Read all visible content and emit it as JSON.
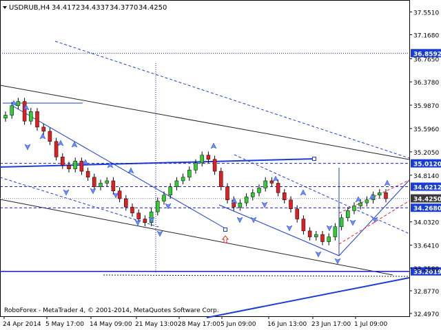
{
  "chart_data": {
    "type": "candlestick",
    "title": "USDRUB,H4",
    "ohlc": {
      "open": "34.4172",
      "high": "34.4337",
      "low": "34.3770",
      "close": "34.4250"
    },
    "copyright": "RoboForex - MetaTrader 4, © 2001-2014, MetaQuotes Software Corp.",
    "ylim": [
      32.45,
      37.75
    ],
    "y_ticks": [
      37.551,
      37.168,
      36.765,
      36.378,
      35.987,
      35.596,
      35.205,
      34.814,
      34.032,
      33.641,
      33.258,
      32.877,
      32.497
    ],
    "y_tick_labels": [
      "37.5510",
      "37.1680",
      "36.7650",
      "36.3780",
      "35.9870",
      "35.5960",
      "35.2050",
      "34.8140",
      "34.0320",
      "33.6410",
      "33.2580",
      "32.8770",
      "32.4970"
    ],
    "x_tick_labels": [
      "24 Apr 2014",
      "5 May 17:00",
      "14 May 09:00",
      "21 May 13:00",
      "28 May 17:00",
      "5 Jun 09:00",
      "16 Jun 13:00",
      "23 Jun 17:00",
      "1 Jul 09:00"
    ],
    "price_levels": [
      {
        "value": 36.8592,
        "label": "36.8592",
        "style": "dotted"
      },
      {
        "value": 35.012,
        "label": "35.0120",
        "style": "dashed"
      },
      {
        "value": 34.6212,
        "label": "34.6212",
        "style": "dashed"
      },
      {
        "value": 34.425,
        "label": "34.4250",
        "style": "current"
      },
      {
        "value": 34.268,
        "label": "34.2680",
        "style": "dashed"
      },
      {
        "value": 33.2019,
        "label": "33.2019",
        "style": "solid"
      }
    ],
    "close_path": [
      35.82,
      35.98,
      36.05,
      35.72,
      35.88,
      35.62,
      35.55,
      35.38,
      35.12,
      34.98,
      34.92,
      35.05,
      34.88,
      34.78,
      34.62,
      34.68,
      34.72,
      34.55,
      34.42,
      34.28,
      34.18,
      34.08,
      34.02,
      34.2,
      34.38,
      34.48,
      34.62,
      34.72,
      34.78,
      34.9,
      35.02,
      35.15,
      35.08,
      34.88,
      34.62,
      34.4,
      34.28,
      34.35,
      34.45,
      34.52,
      34.6,
      34.72,
      34.68,
      34.52,
      34.4,
      34.25,
      34.08,
      33.88,
      33.78,
      33.82,
      33.7,
      33.78,
      33.95,
      34.1,
      34.22,
      34.3,
      34.35,
      34.4,
      34.48,
      34.52,
      34.42
    ]
  }
}
